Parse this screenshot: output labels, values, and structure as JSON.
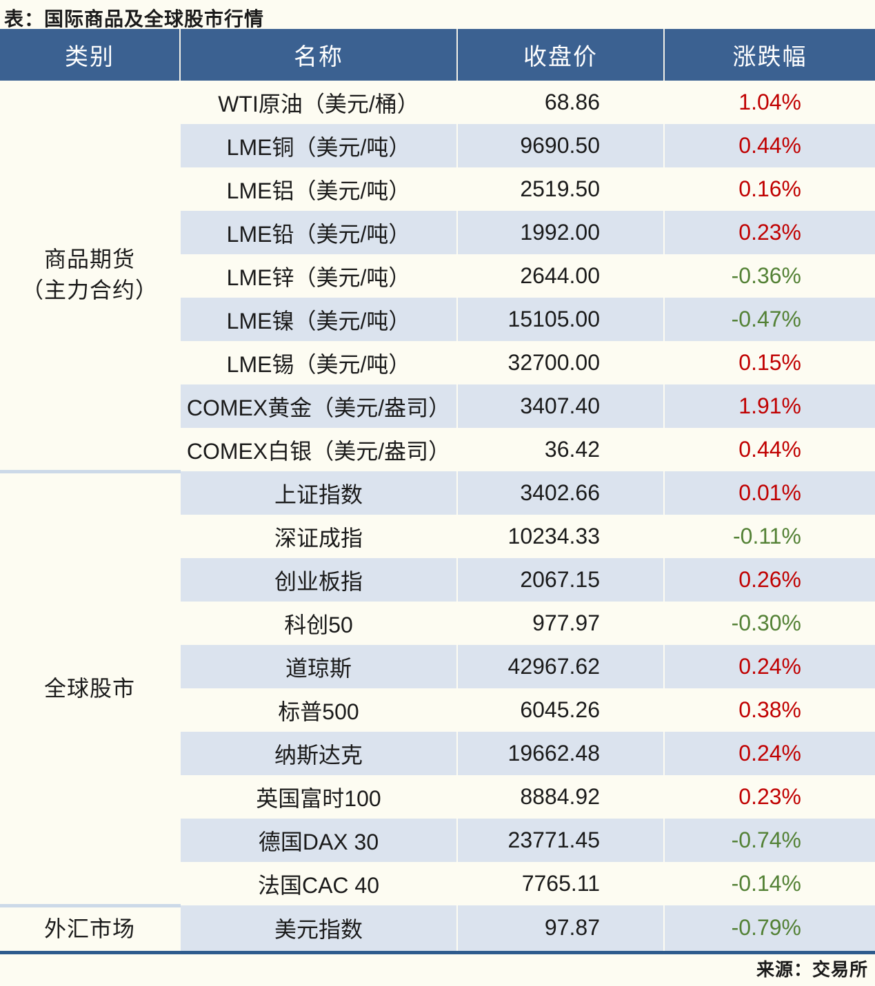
{
  "title": "表：国际商品及全球股市行情",
  "source": "来源：交易所",
  "colors": {
    "up": "#c00000",
    "down": "#538135",
    "header_bg": "#3b6191",
    "header_text": "#ffffff",
    "alt_row_bg": "#dbe3ee",
    "page_bg": "#fdfcf2",
    "divider": "#ccd9e8",
    "bottom_border": "#2e5b8d",
    "text": "#1a1a1a"
  },
  "table": {
    "headers": [
      "类别",
      "名称",
      "收盘价",
      "涨跌幅"
    ],
    "groups": [
      {
        "category_lines": [
          "商品期货",
          "（主力合约）"
        ],
        "rows": [
          {
            "name": "WTI原油（美元/桶）",
            "close": "68.86",
            "change": "1.04%",
            "dir": "up"
          },
          {
            "name": "LME铜（美元/吨）",
            "close": "9690.50",
            "change": "0.44%",
            "dir": "up"
          },
          {
            "name": "LME铝（美元/吨）",
            "close": "2519.50",
            "change": "0.16%",
            "dir": "up"
          },
          {
            "name": "LME铅（美元/吨）",
            "close": "1992.00",
            "change": "0.23%",
            "dir": "up"
          },
          {
            "name": "LME锌（美元/吨）",
            "close": "2644.00",
            "change": "-0.36%",
            "dir": "down"
          },
          {
            "name": "LME镍（美元/吨）",
            "close": "15105.00",
            "change": "-0.47%",
            "dir": "down"
          },
          {
            "name": "LME锡（美元/吨）",
            "close": "32700.00",
            "change": "0.15%",
            "dir": "up"
          },
          {
            "name": "COMEX黄金（美元/盎司）",
            "close": "3407.40",
            "change": "1.91%",
            "dir": "up"
          },
          {
            "name": "COMEX白银（美元/盎司）",
            "close": "36.42",
            "change": "0.44%",
            "dir": "up"
          }
        ]
      },
      {
        "category_lines": [
          "全球股市"
        ],
        "rows": [
          {
            "name": "上证指数",
            "close": "3402.66",
            "change": "0.01%",
            "dir": "up"
          },
          {
            "name": "深证成指",
            "close": "10234.33",
            "change": "-0.11%",
            "dir": "down"
          },
          {
            "name": "创业板指",
            "close": "2067.15",
            "change": "0.26%",
            "dir": "up"
          },
          {
            "name": "科创50",
            "close": "977.97",
            "change": "-0.30%",
            "dir": "down"
          },
          {
            "name": "道琼斯",
            "close": "42967.62",
            "change": "0.24%",
            "dir": "up"
          },
          {
            "name": "标普500",
            "close": "6045.26",
            "change": "0.38%",
            "dir": "up"
          },
          {
            "name": "纳斯达克",
            "close": "19662.48",
            "change": "0.24%",
            "dir": "up"
          },
          {
            "name": "英国富时100",
            "close": "8884.92",
            "change": "0.23%",
            "dir": "up"
          },
          {
            "name": "德国DAX 30",
            "close": "23771.45",
            "change": "-0.74%",
            "dir": "down"
          },
          {
            "name": "法国CAC 40",
            "close": "7765.11",
            "change": "-0.14%",
            "dir": "down"
          }
        ]
      },
      {
        "category_lines": [
          "外汇市场"
        ],
        "rows": [
          {
            "name": "美元指数",
            "close": "97.87",
            "change": "-0.79%",
            "dir": "down"
          }
        ]
      }
    ]
  }
}
